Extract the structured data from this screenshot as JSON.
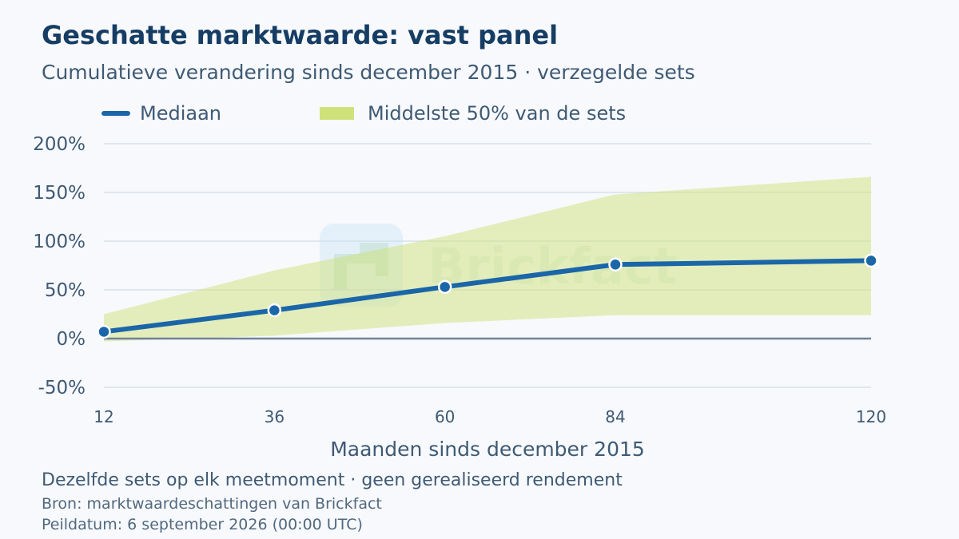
{
  "title": "Geschatte marktwaarde: vast panel",
  "subtitle": "Cumulatieve verandering sinds december 2015 · verzegelde sets",
  "legend": {
    "median_label": "Mediaan",
    "band_label": "Middelste 50% van de sets"
  },
  "watermark": "Brickfact",
  "note": "Dezelfde sets op elk meetmoment · geen gerealiseerd rendement",
  "source": "Bron: marktwaardeschattingen van Brickfact",
  "date": "Peildatum: 6 september 2026 (00:00 UTC)",
  "colors": {
    "median": "#1a66a8",
    "band": "#cfe27a",
    "zero_line": "#6f8498",
    "grid": "#d7e1ea",
    "title": "#163d63"
  },
  "chart_data": {
    "type": "line",
    "xlabel": "Maanden sinds december 2015",
    "ylabel": "",
    "x": [
      12,
      36,
      60,
      84,
      120
    ],
    "x_tick_labels": [
      "12",
      "36",
      "60",
      "84",
      "120"
    ],
    "y_ticks": [
      -50,
      0,
      50,
      100,
      150,
      200
    ],
    "y_tick_labels": [
      "-50%",
      "0%",
      "50%",
      "100%",
      "150%",
      "200%"
    ],
    "ylim": [
      -50,
      200
    ],
    "grid": true,
    "legend_position": "top-left",
    "series": [
      {
        "name": "Mediaan",
        "values": [
          7,
          29,
          53,
          76,
          80
        ]
      },
      {
        "name": "Middelste 50% van de sets",
        "type": "band",
        "lower": [
          -3,
          3,
          16,
          24,
          24
        ],
        "upper": [
          25,
          70,
          105,
          148,
          166
        ]
      }
    ]
  }
}
